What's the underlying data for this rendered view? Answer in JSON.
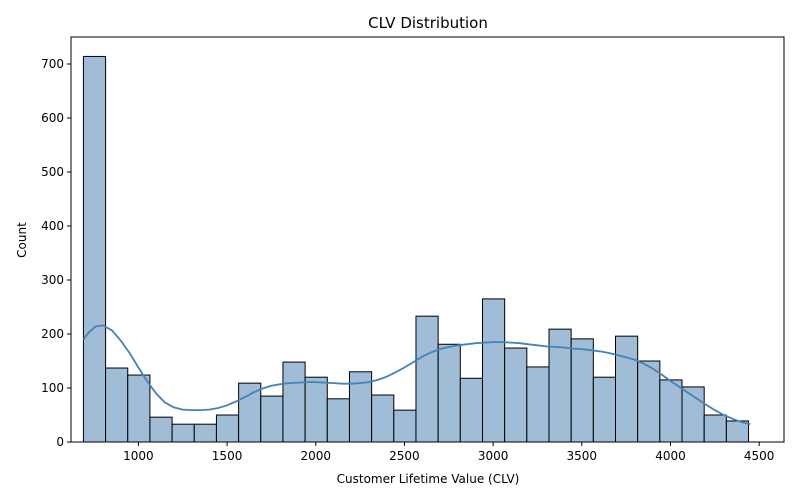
{
  "chart_data": {
    "type": "bar",
    "title": "CLV Distribution",
    "xlabel": "Customer Lifetime Value (CLV)",
    "ylabel": "Count",
    "xlim": [
      620,
      4640
    ],
    "ylim": [
      0,
      750
    ],
    "xticks": [
      1000,
      1500,
      2000,
      2500,
      3000,
      3500,
      4000,
      4500
    ],
    "yticks": [
      0,
      100,
      200,
      300,
      400,
      500,
      600,
      700
    ],
    "grid": false,
    "bar_color": "#a0bcd7",
    "bar_edge_color": "#000000",
    "kde_color": "#4682b4",
    "bins": [
      {
        "x0": 690,
        "x1": 815,
        "count": 714
      },
      {
        "x0": 815,
        "x1": 940,
        "count": 137
      },
      {
        "x0": 940,
        "x1": 1065,
        "count": 124
      },
      {
        "x0": 1065,
        "x1": 1190,
        "count": 46
      },
      {
        "x0": 1190,
        "x1": 1315,
        "count": 33
      },
      {
        "x0": 1315,
        "x1": 1440,
        "count": 33
      },
      {
        "x0": 1440,
        "x1": 1565,
        "count": 50
      },
      {
        "x0": 1565,
        "x1": 1690,
        "count": 109
      },
      {
        "x0": 1690,
        "x1": 1815,
        "count": 85
      },
      {
        "x0": 1815,
        "x1": 1940,
        "count": 148
      },
      {
        "x0": 1940,
        "x1": 2065,
        "count": 120
      },
      {
        "x0": 2065,
        "x1": 2190,
        "count": 80
      },
      {
        "x0": 2190,
        "x1": 2315,
        "count": 130
      },
      {
        "x0": 2315,
        "x1": 2440,
        "count": 87
      },
      {
        "x0": 2440,
        "x1": 2565,
        "count": 59
      },
      {
        "x0": 2565,
        "x1": 2690,
        "count": 233
      },
      {
        "x0": 2690,
        "x1": 2815,
        "count": 181
      },
      {
        "x0": 2815,
        "x1": 2940,
        "count": 118
      },
      {
        "x0": 2940,
        "x1": 3065,
        "count": 265
      },
      {
        "x0": 3065,
        "x1": 3190,
        "count": 174
      },
      {
        "x0": 3190,
        "x1": 3315,
        "count": 139
      },
      {
        "x0": 3315,
        "x1": 3440,
        "count": 209
      },
      {
        "x0": 3440,
        "x1": 3565,
        "count": 191
      },
      {
        "x0": 3565,
        "x1": 3690,
        "count": 120
      },
      {
        "x0": 3690,
        "x1": 3815,
        "count": 196
      },
      {
        "x0": 3815,
        "x1": 3940,
        "count": 150
      },
      {
        "x0": 3940,
        "x1": 4065,
        "count": 115
      },
      {
        "x0": 4065,
        "x1": 4190,
        "count": 102
      },
      {
        "x0": 4190,
        "x1": 4315,
        "count": 50
      },
      {
        "x0": 4315,
        "x1": 4440,
        "count": 39
      }
    ],
    "kde_curve": [
      [
        690,
        190
      ],
      [
        720,
        203
      ],
      [
        760,
        214
      ],
      [
        800,
        216
      ],
      [
        850,
        207
      ],
      [
        900,
        188
      ],
      [
        950,
        165
      ],
      [
        1000,
        138
      ],
      [
        1050,
        112
      ],
      [
        1100,
        90
      ],
      [
        1150,
        73
      ],
      [
        1200,
        64
      ],
      [
        1250,
        60
      ],
      [
        1300,
        59
      ],
      [
        1350,
        59
      ],
      [
        1400,
        60
      ],
      [
        1450,
        63
      ],
      [
        1500,
        68
      ],
      [
        1550,
        75
      ],
      [
        1600,
        83
      ],
      [
        1650,
        92
      ],
      [
        1700,
        99
      ],
      [
        1750,
        104
      ],
      [
        1800,
        107
      ],
      [
        1850,
        109
      ],
      [
        1900,
        110
      ],
      [
        1950,
        111
      ],
      [
        2000,
        111
      ],
      [
        2050,
        110
      ],
      [
        2100,
        109
      ],
      [
        2150,
        108
      ],
      [
        2200,
        108
      ],
      [
        2250,
        109
      ],
      [
        2300,
        111
      ],
      [
        2350,
        115
      ],
      [
        2400,
        121
      ],
      [
        2450,
        129
      ],
      [
        2500,
        138
      ],
      [
        2550,
        148
      ],
      [
        2600,
        158
      ],
      [
        2650,
        166
      ],
      [
        2700,
        172
      ],
      [
        2750,
        176
      ],
      [
        2800,
        179
      ],
      [
        2850,
        181
      ],
      [
        2900,
        183
      ],
      [
        2950,
        184
      ],
      [
        3000,
        185
      ],
      [
        3050,
        185
      ],
      [
        3100,
        184
      ],
      [
        3150,
        183
      ],
      [
        3200,
        181
      ],
      [
        3250,
        179
      ],
      [
        3300,
        177
      ],
      [
        3350,
        176
      ],
      [
        3400,
        175
      ],
      [
        3450,
        173
      ],
      [
        3500,
        172
      ],
      [
        3550,
        170
      ],
      [
        3600,
        168
      ],
      [
        3650,
        165
      ],
      [
        3700,
        161
      ],
      [
        3750,
        157
      ],
      [
        3800,
        152
      ],
      [
        3850,
        145
      ],
      [
        3900,
        136
      ],
      [
        3950,
        125
      ],
      [
        4000,
        113
      ],
      [
        4050,
        102
      ],
      [
        4100,
        91
      ],
      [
        4150,
        80
      ],
      [
        4200,
        69
      ],
      [
        4250,
        59
      ],
      [
        4300,
        50
      ],
      [
        4350,
        43
      ],
      [
        4400,
        37
      ],
      [
        4450,
        33
      ]
    ]
  }
}
